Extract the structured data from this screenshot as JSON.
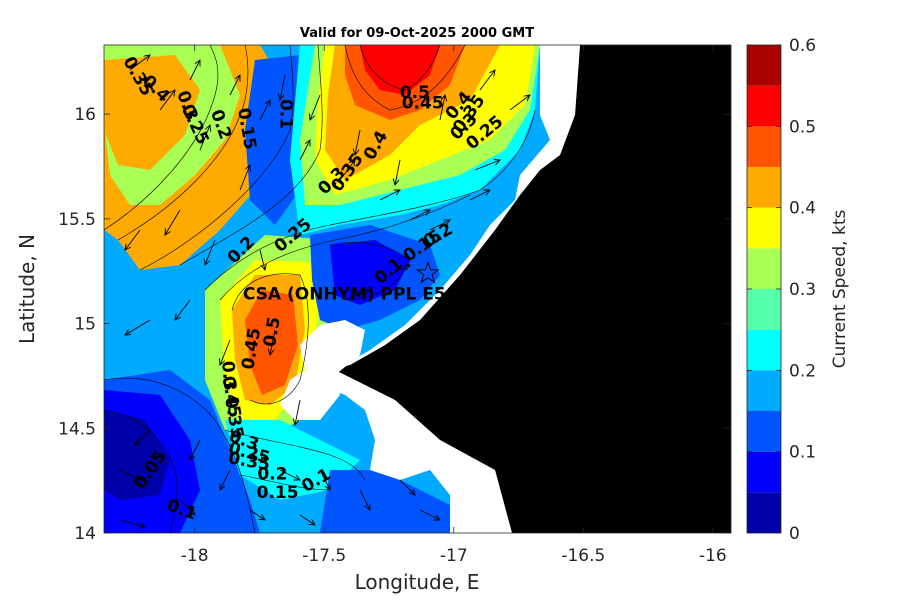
{
  "chart_data": {
    "type": "heatmap",
    "subtype": "filled-contour map with current vectors",
    "title": "Valid for 09-Oct-2025 2000 GMT",
    "xlabel": "Longitude, E",
    "ylabel": "Latitude, N",
    "xlim": [
      -18.35,
      -15.93
    ],
    "ylim": [
      14.0,
      16.33
    ],
    "x_ticks": [
      -18,
      -17.5,
      -17,
      -16.5,
      -16
    ],
    "x_tick_labels": [
      "-18",
      "-17.5",
      "-17",
      "-16.5",
      "-16"
    ],
    "y_ticks": [
      14,
      14.5,
      15,
      15.5,
      16
    ],
    "y_tick_labels": [
      "14",
      "14.5",
      "15",
      "15.5",
      "16"
    ],
    "colorbar": {
      "label": "Current Speed, kts",
      "min": 0,
      "max": 0.6,
      "levels": [
        0,
        0.05,
        0.1,
        0.15,
        0.2,
        0.25,
        0.3,
        0.35,
        0.4,
        0.45,
        0.5,
        0.55,
        0.6
      ],
      "colors": [
        "#0000aa",
        "#0000ff",
        "#0055ff",
        "#00aaff",
        "#00ffff",
        "#55ffaa",
        "#aaff55",
        "#ffff00",
        "#ffaa00",
        "#ff5500",
        "#ff0000",
        "#aa0000"
      ],
      "tick_values": [
        0,
        0.1,
        0.2,
        0.3,
        0.4,
        0.5,
        0.6
      ],
      "tick_labels": [
        "0",
        "0.1",
        "0.2",
        "0.3",
        "0.4",
        "0.5",
        "0.6"
      ]
    },
    "station": {
      "name": "CSA (ONHYM) PPL E5",
      "lon": -17.1,
      "lat": 15.24
    },
    "contour_labels": [
      {
        "text": "0.35",
        "lon": -18.22,
        "lat": 16.18,
        "rotation": 60
      },
      {
        "text": "0.4",
        "lon": -18.15,
        "lat": 16.12,
        "rotation": 45
      },
      {
        "text": "0.3",
        "lon": -18.03,
        "lat": 16.04,
        "rotation": 70
      },
      {
        "text": "0.25",
        "lon": -18.0,
        "lat": 15.95,
        "rotation": 65
      },
      {
        "text": "0.2",
        "lon": -17.9,
        "lat": 15.95,
        "rotation": 70
      },
      {
        "text": "0.15",
        "lon": -17.8,
        "lat": 15.93,
        "rotation": 80
      },
      {
        "text": "0.1",
        "lon": -17.65,
        "lat": 16.0,
        "rotation": 90
      },
      {
        "text": "0.3",
        "lon": -17.47,
        "lat": 15.68,
        "rotation": -45
      },
      {
        "text": "0.35",
        "lon": -17.41,
        "lat": 15.72,
        "rotation": -55
      },
      {
        "text": "0.4",
        "lon": -17.3,
        "lat": 15.85,
        "rotation": -60
      },
      {
        "text": "0.5",
        "lon": -17.15,
        "lat": 16.1,
        "rotation": 0
      },
      {
        "text": "0.45",
        "lon": -17.12,
        "lat": 16.05,
        "rotation": 0
      },
      {
        "text": "0.4",
        "lon": -16.98,
        "lat": 16.04,
        "rotation": -50
      },
      {
        "text": "0.35",
        "lon": -16.94,
        "lat": 16.0,
        "rotation": -55
      },
      {
        "text": "0.3",
        "lon": -16.96,
        "lat": 15.94,
        "rotation": -45
      },
      {
        "text": "0.25",
        "lon": -16.88,
        "lat": 15.91,
        "rotation": -40
      },
      {
        "text": "0.25",
        "lon": -17.62,
        "lat": 15.42,
        "rotation": -40
      },
      {
        "text": "0.2",
        "lon": -17.82,
        "lat": 15.35,
        "rotation": -45
      },
      {
        "text": "0.2",
        "lon": -17.06,
        "lat": 15.42,
        "rotation": -30
      },
      {
        "text": "0.15",
        "lon": -17.12,
        "lat": 15.37,
        "rotation": -35
      },
      {
        "text": "0.1",
        "lon": -17.25,
        "lat": 15.25,
        "rotation": -40
      },
      {
        "text": "0.45",
        "lon": -17.78,
        "lat": 14.88,
        "rotation": -80
      },
      {
        "text": "0.5",
        "lon": -17.7,
        "lat": 14.96,
        "rotation": -80
      },
      {
        "text": "0.3",
        "lon": -17.87,
        "lat": 14.75,
        "rotation": 85
      },
      {
        "text": "0.45",
        "lon": -17.86,
        "lat": 14.65,
        "rotation": 80
      },
      {
        "text": "0.35",
        "lon": -17.85,
        "lat": 14.55,
        "rotation": 80
      },
      {
        "text": "0.3",
        "lon": -17.81,
        "lat": 14.44,
        "rotation": 20
      },
      {
        "text": "0.25",
        "lon": -17.79,
        "lat": 14.38,
        "rotation": 15
      },
      {
        "text": "0.35",
        "lon": -17.79,
        "lat": 14.34,
        "rotation": 10
      },
      {
        "text": "0.2",
        "lon": -17.7,
        "lat": 14.28,
        "rotation": 0
      },
      {
        "text": "0.15",
        "lon": -17.68,
        "lat": 14.19,
        "rotation": 0
      },
      {
        "text": "0.1",
        "lon": -17.53,
        "lat": 14.25,
        "rotation": -30
      },
      {
        "text": "0.05",
        "lon": -18.17,
        "lat": 14.3,
        "rotation": -55
      },
      {
        "text": "0.1",
        "lon": -18.05,
        "lat": 14.11,
        "rotation": 20
      }
    ]
  }
}
